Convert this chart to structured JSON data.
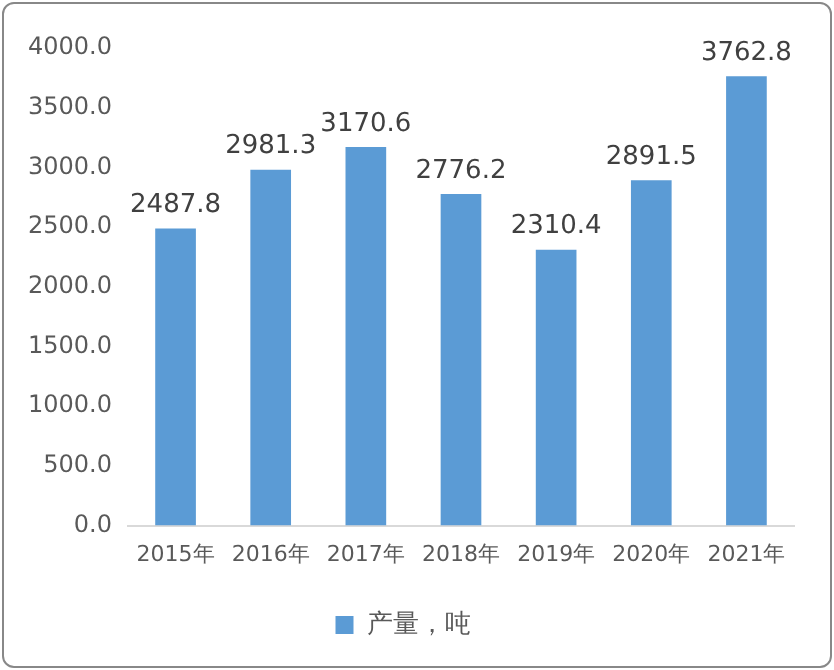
{
  "chart_data": {
    "type": "bar",
    "categories": [
      "2015年",
      "2016年",
      "2017年",
      "2018年",
      "2019年",
      "2020年",
      "2021年"
    ],
    "series": [
      {
        "name": "产量，吨",
        "color": "#5b9bd5",
        "values": [
          2487.8,
          2981.3,
          3170.6,
          2776.2,
          2310.4,
          2891.5,
          3762.8
        ]
      }
    ],
    "ylim": [
      0,
      4000
    ],
    "yticks": [
      {
        "value": 0,
        "label": "0.0"
      },
      {
        "value": 500,
        "label": "500.0"
      },
      {
        "value": 1000,
        "label": "1000.0"
      },
      {
        "value": 1500,
        "label": "1500.0"
      },
      {
        "value": 2000,
        "label": "2000.0"
      },
      {
        "value": 2500,
        "label": "2500.0"
      },
      {
        "value": 3000,
        "label": "3000.0"
      },
      {
        "value": 3500,
        "label": "3500.0"
      },
      {
        "value": 4000,
        "label": "4000.0"
      }
    ],
    "data_labels": true,
    "legend": "bottom"
  }
}
